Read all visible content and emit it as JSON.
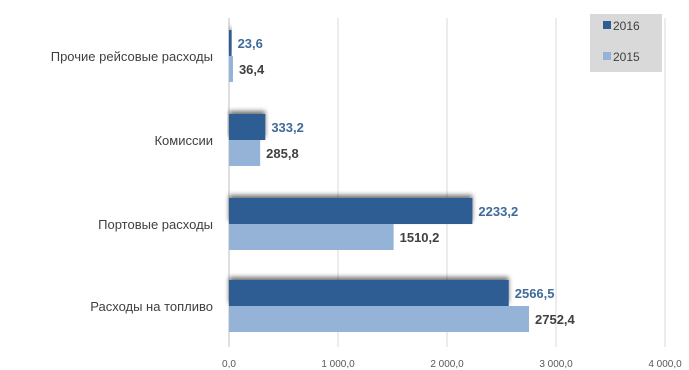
{
  "chart_data": {
    "type": "bar",
    "orientation": "horizontal",
    "categories": [
      "Прочие рейсовые расходы",
      "Комиссии",
      "Портовые расходы",
      "Расходы на топливо"
    ],
    "series": [
      {
        "name": "2016",
        "color": "#2f5d93",
        "label_color": "#3f6a99",
        "values": [
          23.6,
          333.2,
          2233.2,
          2566.5
        ],
        "labels": [
          "23,6",
          "333,2",
          "2233,2",
          "2566,5"
        ]
      },
      {
        "name": "2015",
        "color": "#95b3d7",
        "label_color": "#404040",
        "values": [
          36.4,
          285.8,
          1510.2,
          2752.4
        ],
        "labels": [
          "36,4",
          "285,8",
          "1510,2",
          "2752,4"
        ]
      }
    ],
    "xlim": [
      0,
      4000
    ],
    "x_ticks": [
      0,
      1000,
      2000,
      3000,
      4000
    ],
    "x_tick_labels": [
      "0,0",
      "1 000,0",
      "2 000,0",
      "3 000,0",
      "4 000,0"
    ],
    "grid": "vertical",
    "legend_position": "top-right",
    "legend_background": "#d9d9d9",
    "title": "",
    "xlabel": "",
    "ylabel": ""
  }
}
